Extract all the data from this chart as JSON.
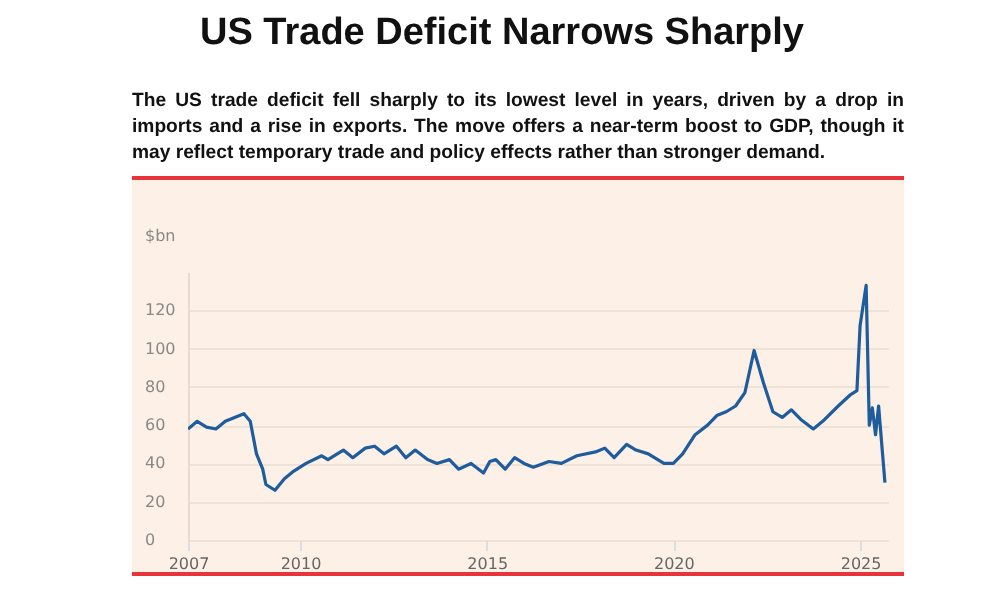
{
  "chart_data": {
    "type": "line",
    "title": "US Trade Deficit Narrows Sharply",
    "subtitle": "The US trade deficit fell sharply to its lowest level in years, driven by a drop in imports and a rise in exports. The move offers a near-term boost to GDP, though it may reflect temporary trade and policy effects rather than stronger demand.",
    "ylabel": "$bn",
    "x": [
      "2007-01",
      "2007-04",
      "2007-07",
      "2007-10",
      "2008-01",
      "2008-04",
      "2008-07",
      "2008-09",
      "2008-11",
      "2009-01",
      "2009-02",
      "2009-05",
      "2009-08",
      "2009-11",
      "2010-03",
      "2010-08",
      "2010-10",
      "2011-03",
      "2011-06",
      "2011-10",
      "2012-01",
      "2012-04",
      "2012-08",
      "2012-11",
      "2013-02",
      "2013-06",
      "2013-09",
      "2014-01",
      "2014-04",
      "2014-08",
      "2014-12",
      "2015-02",
      "2015-04",
      "2015-07",
      "2015-10",
      "2016-01",
      "2016-04",
      "2016-09",
      "2017-01",
      "2017-06",
      "2017-12",
      "2018-03",
      "2018-06",
      "2018-10",
      "2019-01",
      "2019-05",
      "2019-10",
      "2020-01",
      "2020-04",
      "2020-08",
      "2020-12",
      "2021-03",
      "2021-06",
      "2021-09",
      "2021-12",
      "2022-03",
      "2022-06",
      "2022-09",
      "2022-12",
      "2023-03",
      "2023-06",
      "2023-10",
      "2024-01",
      "2024-06",
      "2024-10",
      "2024-12",
      "2025-01",
      "2025-03",
      "2025-04",
      "2025-05",
      "2025-06",
      "2025-07",
      "2025-09"
    ],
    "series": [
      {
        "color": "#1f5c9e",
        "values": [
          58,
          62,
          59,
          58,
          62,
          64,
          66,
          62,
          45,
          37,
          29,
          26,
          32,
          36,
          40,
          44,
          42,
          47,
          43,
          48,
          49,
          45,
          49,
          43,
          47,
          42,
          40,
          42,
          37,
          40,
          35,
          41,
          42,
          37,
          43,
          40,
          38,
          41,
          40,
          44,
          46,
          48,
          43,
          50,
          47,
          45,
          40,
          40,
          45,
          55,
          60,
          65,
          67,
          70,
          77,
          99,
          82,
          67,
          64,
          68,
          63,
          58,
          62,
          70,
          76,
          78,
          112,
          133,
          60,
          69,
          55,
          70,
          30
        ]
      }
    ],
    "xlim": [
      "2007-01",
      "2025-10"
    ],
    "xticks": [
      "2007",
      "2010",
      "2015",
      "2020",
      "2025"
    ],
    "ylim": [
      0,
      140
    ],
    "yticks": [
      0,
      20,
      40,
      60,
      80,
      100,
      120
    ],
    "grid": "y"
  }
}
